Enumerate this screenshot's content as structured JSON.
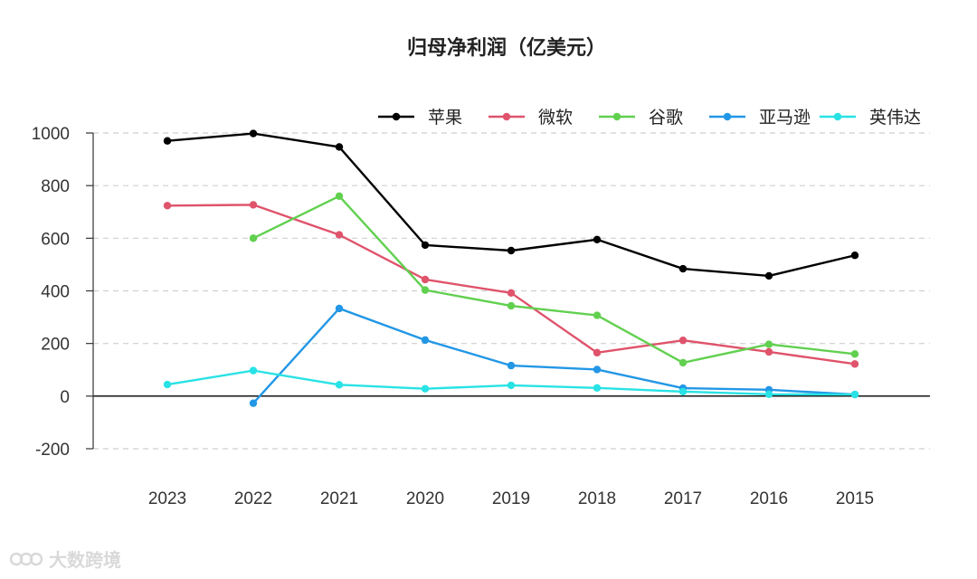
{
  "chart_data": {
    "type": "line",
    "title": "归母净利润（亿美元）",
    "xlabel": "",
    "ylabel": "",
    "categories": [
      "2023",
      "2022",
      "2021",
      "2020",
      "2019",
      "2018",
      "2017",
      "2016",
      "2015"
    ],
    "ylim": [
      -200,
      1000
    ],
    "yticks": [
      -200,
      0,
      200,
      400,
      600,
      800,
      1000
    ],
    "grid": true,
    "legend_position": "top",
    "series": [
      {
        "name": "苹果",
        "color": "#000000",
        "values": [
          970,
          998,
          947,
          574,
          553,
          595,
          484,
          457,
          535
        ]
      },
      {
        "name": "微软",
        "color": "#DF536B",
        "values": [
          724,
          727,
          613,
          443,
          392,
          165,
          212,
          168,
          122
        ]
      },
      {
        "name": "谷歌",
        "color": "#61D04F",
        "values": [
          null,
          600,
          760,
          403,
          343,
          307,
          127,
          197,
          160
        ]
      },
      {
        "name": "亚马逊",
        "color": "#2297E6",
        "values": [
          null,
          -27,
          333,
          213,
          116,
          101,
          30,
          24,
          6
        ]
      },
      {
        "name": "英伟达",
        "color": "#28E2E5",
        "values": [
          44,
          97,
          43,
          28,
          41,
          31,
          17,
          7,
          6
        ]
      }
    ]
  },
  "watermark": {
    "text": "大数跨境",
    "icon": "logo-icon"
  }
}
